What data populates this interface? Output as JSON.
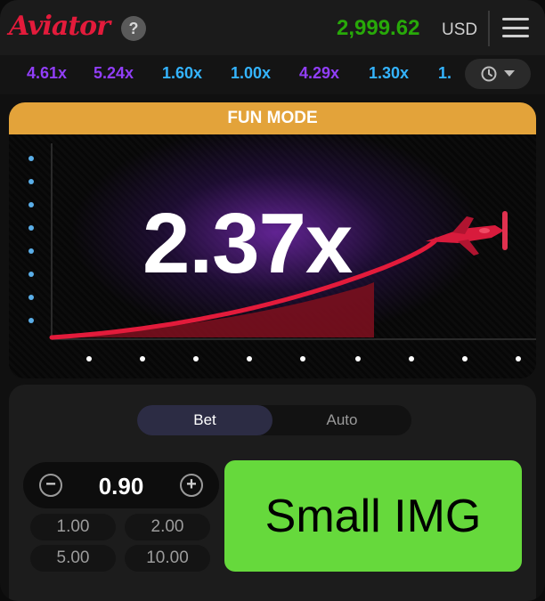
{
  "header": {
    "logo": "Aviator",
    "help_icon": "?",
    "balance": "2,999.62",
    "currency": "USD",
    "menu_icon": "menu-icon"
  },
  "history": {
    "items": [
      {
        "value": "4.61x",
        "color": "#913ef8"
      },
      {
        "value": "5.24x",
        "color": "#913ef8"
      },
      {
        "value": "1.60x",
        "color": "#34b4ff"
      },
      {
        "value": "1.00x",
        "color": "#34b4ff"
      },
      {
        "value": "4.29x",
        "color": "#913ef8"
      },
      {
        "value": "1.30x",
        "color": "#34b4ff"
      },
      {
        "value": "1.",
        "color": "#34b4ff"
      }
    ],
    "history_icon": "history-icon",
    "dropdown_icon": "chevron-down-icon"
  },
  "game": {
    "mode_label": "FUN MODE",
    "multiplier": "2.37x",
    "plane_icon": "plane-icon",
    "curve_color": "#e31b3b"
  },
  "bet": {
    "tabs": [
      {
        "label": "Bet",
        "active": true
      },
      {
        "label": "Auto",
        "active": false
      }
    ],
    "amount": "0.90",
    "minus_icon": "minus-icon",
    "plus_icon": "plus-icon",
    "quick_amounts": [
      "1.00",
      "2.00",
      "5.00",
      "10.00"
    ]
  },
  "overlay": {
    "text": "Small IMG",
    "color": "#66d93c"
  }
}
